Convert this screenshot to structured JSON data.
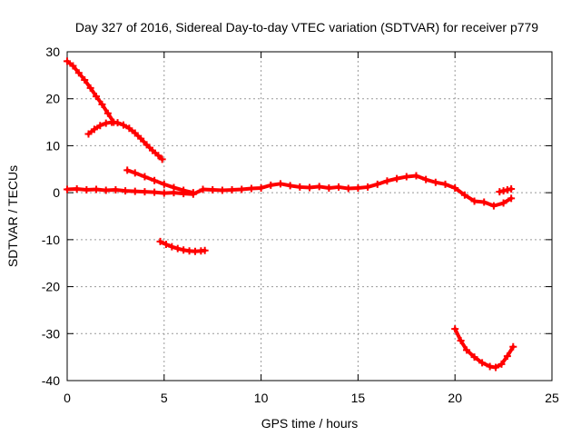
{
  "chart_data": {
    "type": "scatter",
    "title": "Day 327 of 2016, Sidereal Day-to-day VTEC variation (SDTVAR) for receiver p779",
    "xlabel": "GPS time / hours",
    "ylabel": "SDTVAR / TECUs",
    "xlim": [
      0,
      25
    ],
    "ylim": [
      -40,
      30
    ],
    "x_ticks": [
      0,
      5,
      10,
      15,
      20,
      25
    ],
    "y_ticks": [
      -40,
      -30,
      -20,
      -10,
      0,
      10,
      20,
      30
    ],
    "grid": true,
    "marker_color": "#ff0000",
    "series": [
      {
        "name": "arc-decreasing-from-28",
        "x": [
          0.0,
          0.3,
          0.6,
          0.9,
          1.2,
          1.5,
          1.8,
          2.1,
          2.4
        ],
        "y": [
          28.0,
          27.0,
          25.5,
          24.0,
          22.3,
          20.5,
          18.8,
          16.9,
          15.0
        ]
      },
      {
        "name": "arc-hump-to-7",
        "x": [
          1.1,
          1.4,
          1.7,
          2.0,
          2.3,
          2.6,
          2.9,
          3.2,
          3.5,
          3.8,
          4.1,
          4.4,
          4.7,
          4.9
        ],
        "y": [
          12.5,
          13.5,
          14.3,
          14.8,
          15.0,
          14.9,
          14.4,
          13.7,
          12.7,
          11.5,
          10.2,
          9.0,
          7.9,
          7.1
        ]
      },
      {
        "name": "arc-5-to-0",
        "x": [
          3.1,
          3.5,
          4.0,
          4.5,
          5.0,
          5.5,
          6.0,
          6.5
        ],
        "y": [
          4.8,
          4.2,
          3.4,
          2.6,
          1.8,
          1.1,
          0.5,
          0.0
        ]
      },
      {
        "name": "arc-negative-12",
        "x": [
          4.8,
          5.1,
          5.4,
          5.7,
          6.0,
          6.3,
          6.6,
          6.9,
          7.1
        ],
        "y": [
          -10.4,
          -11.0,
          -11.5,
          -11.9,
          -12.2,
          -12.4,
          -12.5,
          -12.4,
          -12.3
        ]
      },
      {
        "name": "arc-negative-37",
        "x": [
          20.0,
          20.3,
          20.6,
          21.0,
          21.4,
          21.8,
          22.1,
          22.4,
          22.7,
          23.0
        ],
        "y": [
          -29.0,
          -31.5,
          -33.5,
          -35.0,
          -36.2,
          -37.0,
          -37.2,
          -36.5,
          -34.8,
          -32.8
        ]
      },
      {
        "name": "main-band",
        "x": [
          0.0,
          0.5,
          1.0,
          1.5,
          2.0,
          2.5,
          3.0,
          3.5,
          4.0,
          4.5,
          5.0,
          5.5,
          6.0,
          6.5,
          7.0,
          7.5,
          8.0,
          8.5,
          9.0,
          9.5,
          10.0,
          10.5,
          11.0,
          11.5,
          12.0,
          12.5,
          13.0,
          13.5,
          14.0,
          14.5,
          15.0,
          15.5,
          16.0,
          16.5,
          17.0,
          17.5,
          18.0,
          18.5,
          19.0,
          19.5,
          20.0,
          20.5,
          21.0,
          21.5,
          22.0,
          22.5,
          22.9
        ],
        "y": [
          0.7,
          0.8,
          0.6,
          0.7,
          0.5,
          0.6,
          0.4,
          0.3,
          0.2,
          0.1,
          -0.1,
          0.0,
          -0.2,
          -0.3,
          0.7,
          0.6,
          0.5,
          0.6,
          0.7,
          0.9,
          1.0,
          1.6,
          1.9,
          1.5,
          1.2,
          1.1,
          1.3,
          1.0,
          1.2,
          0.9,
          1.0,
          1.2,
          1.8,
          2.5,
          3.0,
          3.4,
          3.6,
          2.8,
          2.2,
          1.8,
          1.0,
          -0.5,
          -1.8,
          -2.0,
          -2.8,
          -2.2,
          -1.2
        ]
      },
      {
        "name": "tail-upper",
        "x": [
          22.3,
          22.5,
          22.7,
          22.9
        ],
        "y": [
          0.2,
          0.4,
          0.6,
          0.8
        ]
      }
    ]
  }
}
